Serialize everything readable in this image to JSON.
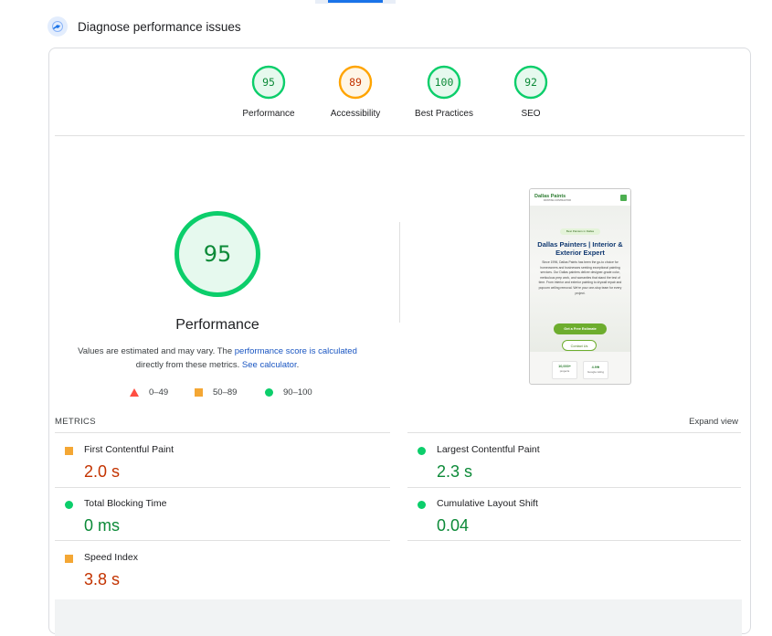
{
  "header": {
    "title": "Diagnose performance issues"
  },
  "scores": [
    {
      "label": "Performance",
      "value": "95",
      "status": "good"
    },
    {
      "label": "Accessibility",
      "value": "89",
      "status": "average"
    },
    {
      "label": "Best Practices",
      "value": "100",
      "status": "good"
    },
    {
      "label": "SEO",
      "value": "92",
      "status": "good"
    }
  ],
  "performance": {
    "score": "95",
    "title": "Performance",
    "note_prefix": "Values are estimated and may vary. The ",
    "note_link1": "performance score is calculated",
    "note_middle": " directly from these metrics. ",
    "note_link2": "See calculator",
    "note_suffix": "."
  },
  "legend": [
    {
      "shape": "triangle",
      "range": "0–49"
    },
    {
      "shape": "square",
      "range": "50–89"
    },
    {
      "shape": "circle",
      "range": "90–100"
    }
  ],
  "screenshot": {
    "logo": "Dallas Paints",
    "logo_sub": "PAINTING CONTRACTOR",
    "tag": "Best Painters in Dallas",
    "title": "Dallas Painters | Interior & Exterior Expert",
    "body": "Since 1996, Dallas Paints has been the go-to choice for homeowners and businesses seeking exceptional painting services. Our Dallas painters deliver designer-grade color, meticulous prep work, and warranties that stand the test of time. From interior and exterior painting to drywall repair and popcorn ceiling removal. We're your one-stop team for every project.",
    "cta_primary": "Get a Free Estimate",
    "cta_secondary": "Contact Us",
    "stats": [
      {
        "value": "10,000+",
        "label": "projects"
      },
      {
        "value": "4.9★",
        "label": "Google rating"
      }
    ]
  },
  "metrics": {
    "heading": "METRICS",
    "expand": "Expand view",
    "items": [
      {
        "name": "First Contentful Paint",
        "value": "2.0 s",
        "status": "average"
      },
      {
        "name": "Largest Contentful Paint",
        "value": "2.3 s",
        "status": "good"
      },
      {
        "name": "Total Blocking Time",
        "value": "0 ms",
        "status": "good"
      },
      {
        "name": "Cumulative Layout Shift",
        "value": "0.04",
        "status": "good"
      },
      {
        "name": "Speed Index",
        "value": "3.8 s",
        "status": "average"
      }
    ]
  },
  "colors": {
    "good": "#0cce6b",
    "good_text": "#0c8a38",
    "average": "#ffa400",
    "average_square": "#f4a734",
    "average_text": "#c33300",
    "poor": "#ff4e42",
    "link": "#1a56c2"
  }
}
